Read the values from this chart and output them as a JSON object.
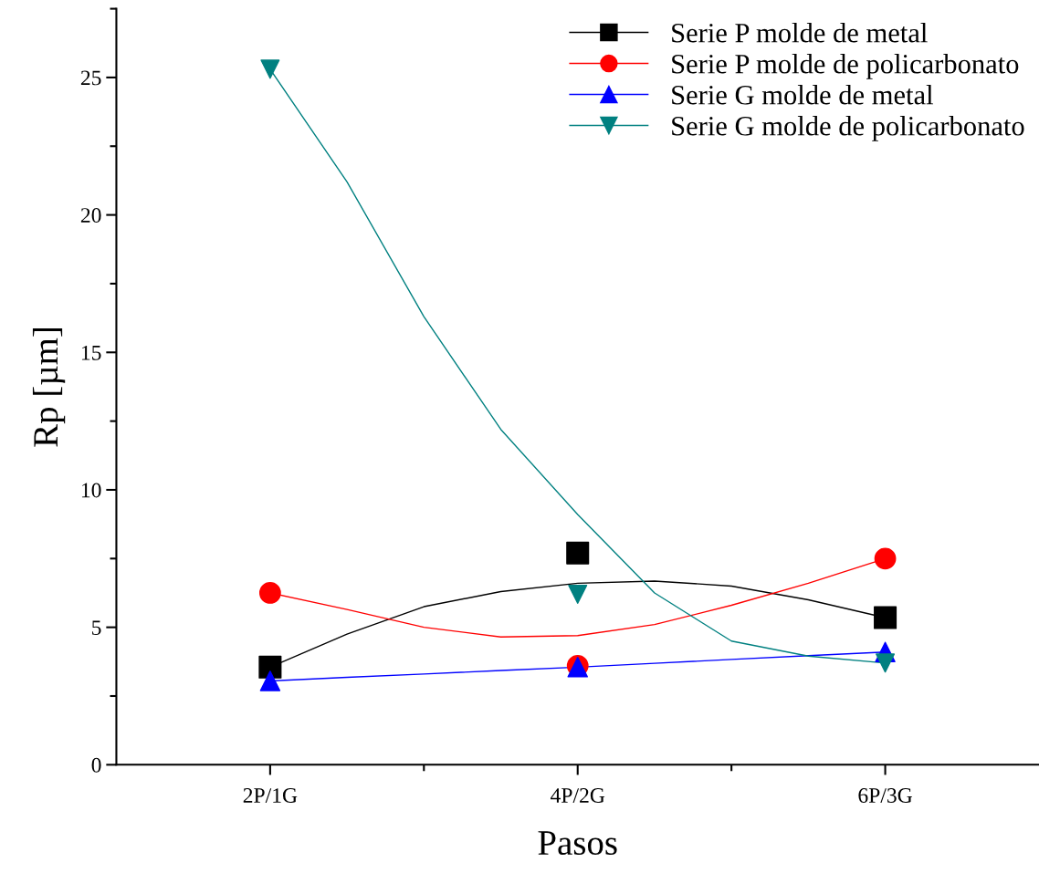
{
  "chart_data": {
    "type": "scatter",
    "xlabel": "Pasos",
    "ylabel": "Rp [µm]",
    "categories": [
      "2P/1G",
      null,
      null,
      null,
      "4P/2G",
      null,
      null,
      null,
      "6P/3G"
    ],
    "ylim": [
      0,
      27.5
    ],
    "yticks": [
      0,
      5,
      10,
      15,
      20,
      25
    ],
    "grid": false,
    "legend": "top right",
    "series": [
      {
        "name": "Serie P molde de metal",
        "color": "#000000",
        "marker": "square",
        "values": [
          3.55,
          null,
          null,
          null,
          7.7,
          null,
          null,
          null,
          5.35
        ]
      },
      {
        "name": "Serie P molde de policarbonato",
        "color": "#ff0000",
        "marker": "circle",
        "values": [
          6.25,
          null,
          null,
          null,
          3.6,
          null,
          null,
          null,
          7.5
        ]
      },
      {
        "name": "Serie G molde de metal",
        "color": "#0000ff",
        "marker": "triangle",
        "values": [
          3.05,
          null,
          null,
          null,
          3.55,
          null,
          null,
          null,
          4.1
        ]
      },
      {
        "name": "Serie G molde de policarbonato",
        "color": "#008080",
        "marker": "triangle_down",
        "values": [
          25.3,
          null,
          null,
          null,
          6.2,
          null,
          null,
          null,
          3.7
        ]
      },
      {
        "type": "line",
        "color": "#000000",
        "values": [
          3.55,
          4.75,
          5.75,
          6.3,
          6.6,
          6.68,
          6.5,
          6.0,
          5.35
        ]
      },
      {
        "type": "line",
        "color": "#ff0000",
        "values": [
          6.25,
          5.65,
          5.0,
          4.65,
          4.7,
          5.1,
          5.8,
          6.6,
          7.5
        ]
      },
      {
        "type": "line",
        "color": "#0000ff",
        "values": [
          3.05,
          3.18,
          3.3,
          3.43,
          3.55,
          3.69,
          3.83,
          3.97,
          4.1
        ]
      },
      {
        "type": "line",
        "color": "#008080",
        "values": [
          25.3,
          21.2,
          16.3,
          12.2,
          9.1,
          6.25,
          4.5,
          3.95,
          3.7
        ]
      }
    ]
  }
}
